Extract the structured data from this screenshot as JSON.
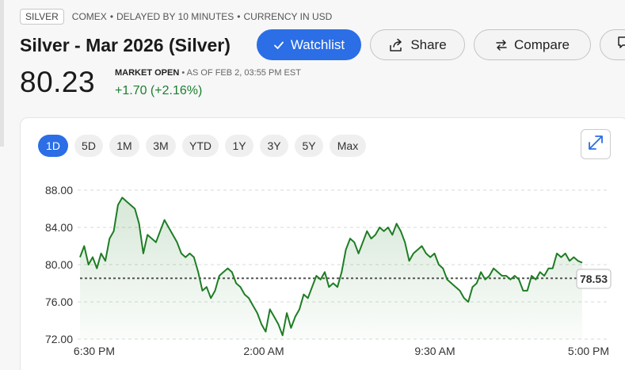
{
  "header": {
    "symbol": "SILVER",
    "meta": [
      "COMEX",
      "DELAYED BY 10 MINUTES",
      "CURRENCY IN USD"
    ],
    "title": "Silver - Mar 2026 (Silver)"
  },
  "actions": {
    "watchlist": "Watchlist",
    "share": "Share",
    "compare": "Compare"
  },
  "quote": {
    "price": "80.23",
    "market_status": "MARKET OPEN",
    "as_of": "AS OF FEB 2, 03:55 PM EST",
    "change": "+1.70 (+2.16%)"
  },
  "ranges": [
    {
      "label": "1D",
      "active": true
    },
    {
      "label": "5D",
      "active": false
    },
    {
      "label": "1M",
      "active": false
    },
    {
      "label": "3M",
      "active": false
    },
    {
      "label": "YTD",
      "active": false
    },
    {
      "label": "1Y",
      "active": false
    },
    {
      "label": "3Y",
      "active": false
    },
    {
      "label": "5Y",
      "active": false
    },
    {
      "label": "Max",
      "active": false
    }
  ],
  "colors": {
    "accent": "#2b6ee6",
    "positive": "#1a7f2e",
    "line": "#1e7d24"
  },
  "chart_data": {
    "type": "line",
    "x_ticks": [
      "6:30 PM",
      "2:00 AM",
      "9:30 AM",
      "5:00 PM"
    ],
    "y_ticks": [
      "88.00",
      "84.00",
      "80.00",
      "76.00",
      "72.00"
    ],
    "ylim": [
      72,
      88
    ],
    "grid": true,
    "reference_value": 78.53,
    "reference_label": "78.53",
    "series": [
      {
        "values": [
          80.8,
          82.0,
          80.0,
          80.8,
          79.6,
          81.2,
          80.4,
          82.8,
          83.6,
          86.4,
          87.2,
          86.8,
          86.4,
          86.0,
          84.4,
          81.2,
          83.2,
          82.8,
          82.4,
          83.6,
          84.8,
          84.0,
          83.2,
          82.4,
          81.2,
          80.8,
          81.2,
          80.8,
          79.2,
          77.2,
          77.6,
          76.4,
          77.2,
          78.8,
          79.2,
          79.6,
          79.2,
          78.0,
          77.6,
          76.8,
          76.4,
          75.6,
          74.8,
          73.6,
          72.8,
          75.2,
          74.4,
          73.6,
          72.4,
          74.8,
          73.2,
          74.4,
          75.2,
          76.8,
          76.4,
          77.6,
          78.8,
          78.4,
          79.2,
          77.6,
          78.0,
          77.6,
          79.2,
          81.6,
          82.8,
          82.4,
          81.2,
          82.4,
          83.6,
          82.8,
          83.2,
          84.0,
          83.6,
          84.0,
          83.2,
          84.4,
          83.6,
          82.4,
          80.4,
          81.2,
          81.6,
          82.0,
          81.2,
          80.8,
          81.2,
          80.0,
          79.6,
          78.4,
          78.0,
          77.6,
          77.2,
          76.4,
          76.0,
          77.6,
          78.0,
          79.2,
          78.4,
          78.8,
          79.6,
          79.2,
          78.8,
          78.8,
          78.4,
          78.8,
          78.4,
          77.2,
          77.2,
          78.8,
          78.4,
          79.2,
          78.8,
          79.6,
          79.6,
          81.2,
          80.8,
          81.2,
          80.4,
          80.8,
          80.4,
          80.2
        ]
      }
    ]
  }
}
